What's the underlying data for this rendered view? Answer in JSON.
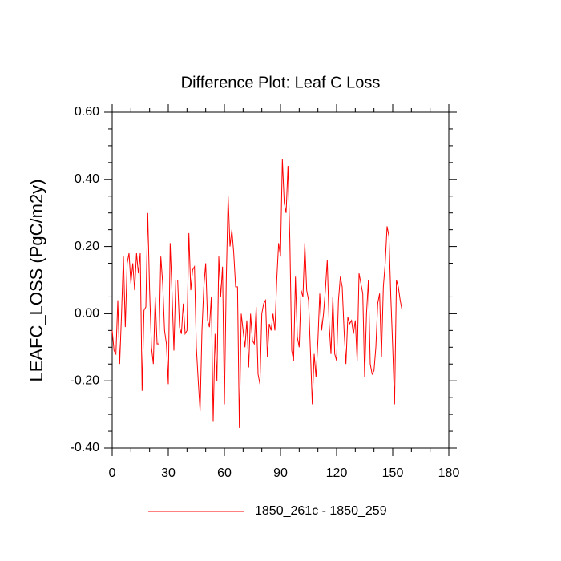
{
  "chart_data": {
    "type": "line",
    "title": "Difference Plot: Leaf C Loss",
    "y_label": "LEAFC_LOSS  (PgC/m2y)",
    "x": [
      0,
      1,
      2,
      3,
      4,
      5,
      6,
      7,
      8,
      9,
      10,
      11,
      12,
      13,
      14,
      15,
      16,
      17,
      18,
      19,
      20,
      21,
      22,
      23,
      24,
      25,
      26,
      27,
      28,
      29,
      30,
      31,
      32,
      33,
      34,
      35,
      36,
      37,
      38,
      39,
      40,
      41,
      42,
      43,
      44,
      45,
      46,
      47,
      48,
      49,
      50,
      51,
      52,
      53,
      54,
      55,
      56,
      57,
      58,
      59,
      60,
      61,
      62,
      63,
      64,
      65,
      66,
      67,
      68,
      69,
      70,
      71,
      72,
      73,
      74,
      75,
      76,
      77,
      78,
      79,
      80,
      81,
      82,
      83,
      84,
      85,
      86,
      87,
      88,
      89,
      90,
      91,
      92,
      93,
      94,
      95,
      96,
      97,
      98,
      99,
      100,
      101,
      102,
      103,
      104,
      105,
      106,
      107,
      108,
      109,
      110,
      111,
      112,
      113,
      114,
      115,
      116,
      117,
      118,
      119,
      120,
      121,
      122,
      123,
      124,
      125,
      126,
      127,
      128,
      129,
      130,
      131,
      132,
      133,
      134,
      135,
      136,
      137,
      138,
      139,
      140,
      141,
      142,
      143,
      144,
      145,
      146,
      147,
      148,
      149,
      150,
      151,
      152,
      153,
      154,
      155
    ],
    "series": [
      {
        "name": "1850_261c - 1850_259",
        "color": "#ff0000",
        "values": [
          -0.05,
          -0.11,
          -0.12,
          0.04,
          -0.15,
          0.0,
          0.17,
          -0.04,
          0.15,
          0.18,
          0.09,
          0.15,
          0.07,
          0.18,
          0.12,
          0.18,
          -0.23,
          0.01,
          0.02,
          0.3,
          0.07,
          -0.1,
          -0.15,
          0.05,
          -0.09,
          -0.09,
          0.17,
          0.09,
          -0.05,
          -0.09,
          -0.21,
          0.21,
          0.06,
          -0.11,
          0.1,
          0.1,
          -0.04,
          -0.06,
          0.03,
          -0.06,
          -0.05,
          0.24,
          0.07,
          0.13,
          0.14,
          -0.1,
          -0.2,
          -0.29,
          -0.05,
          0.08,
          0.15,
          -0.02,
          -0.04,
          0.05,
          -0.32,
          -0.06,
          -0.2,
          0.17,
          0.05,
          0.14,
          -0.27,
          0.1,
          0.35,
          0.2,
          0.25,
          0.18,
          0.08,
          0.08,
          -0.34,
          0.0,
          -0.05,
          -0.1,
          -0.02,
          -0.16,
          0.0,
          -0.08,
          -0.09,
          0.02,
          -0.18,
          -0.21,
          0.0,
          0.03,
          0.04,
          -0.13,
          -0.03,
          -0.05,
          0.0,
          -0.05,
          0.1,
          0.21,
          0.17,
          0.46,
          0.33,
          0.3,
          0.44,
          0.22,
          -0.11,
          -0.14,
          0.11,
          -0.07,
          -0.1,
          0.07,
          0.05,
          0.21,
          0.07,
          0.04,
          -0.11,
          -0.27,
          -0.12,
          -0.19,
          -0.08,
          0.06,
          -0.05,
          0.0,
          0.07,
          0.16,
          -0.03,
          -0.12,
          0.05,
          -0.12,
          -0.14,
          0.04,
          0.11,
          0.08,
          -0.05,
          -0.15,
          -0.01,
          -0.03,
          -0.02,
          -0.06,
          -0.02,
          -0.14,
          0.12,
          0.09,
          0.06,
          -0.19,
          0.0,
          0.1,
          -0.15,
          -0.18,
          -0.17,
          -0.1,
          0.03,
          0.06,
          -0.13,
          0.08,
          0.15,
          0.26,
          0.23,
          0.05,
          -0.1,
          -0.27,
          0.1,
          0.08,
          0.04,
          0.01
        ]
      }
    ],
    "xlim": [
      0,
      180
    ],
    "xticks": [
      0,
      30,
      60,
      90,
      120,
      150,
      180
    ],
    "ylim": [
      -0.4,
      0.6
    ],
    "yticks": [
      {
        "value": -0.4,
        "label": "-0.40"
      },
      {
        "value": -0.2,
        "label": "-0.20"
      },
      {
        "value": 0,
        "label": "0.00"
      },
      {
        "value": 0.2,
        "label": "0.20"
      },
      {
        "value": 0.4,
        "label": "0.40"
      },
      {
        "value": 0.6,
        "label": "0.60"
      }
    ],
    "legend": "bottom"
  }
}
